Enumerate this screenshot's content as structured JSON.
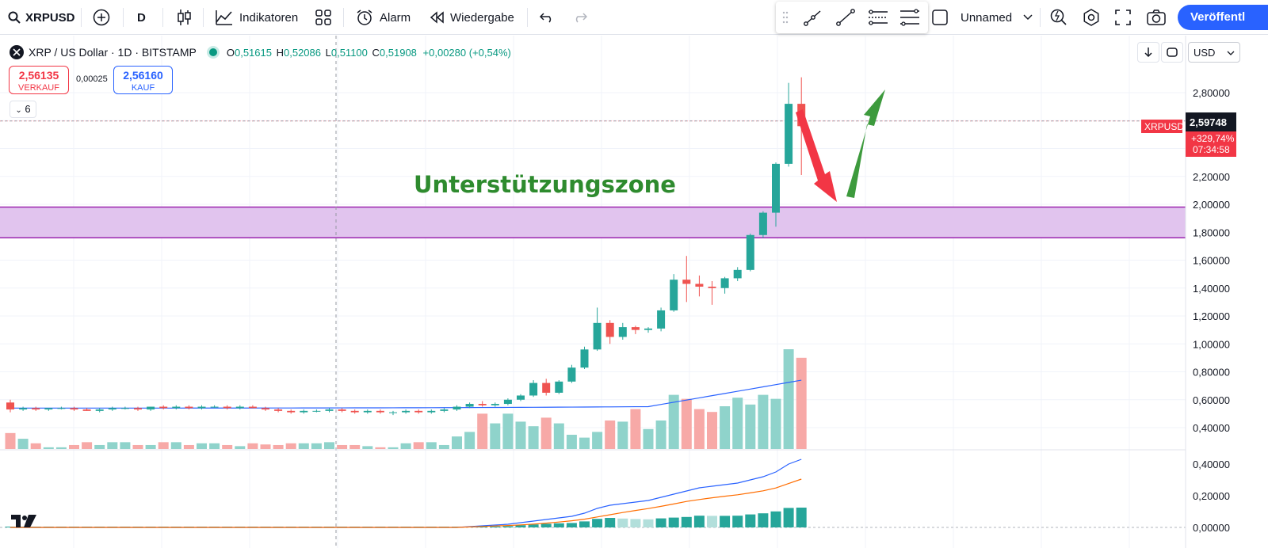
{
  "toolbar": {
    "symbol": "XRPUSD",
    "interval": "D",
    "indicators_label": "Indikatoren",
    "alarm_label": "Alarm",
    "replay_label": "Wiedergabe",
    "layout_name": "Unnamed",
    "publish_label": "Veröffentl"
  },
  "legend": {
    "title": "XRP / US Dollar · 1D · BITSTAMP",
    "o_label": "O",
    "o_value": "0,51615",
    "h_label": "H",
    "h_value": "0,52086",
    "l_label": "L",
    "l_value": "0,51100",
    "c_label": "C",
    "c_value": "0,51908",
    "change": "+0,00280 (+0,54%)",
    "sell_price": "2,56135",
    "sell_label": "VERKAUF",
    "spread": "0,00025",
    "buy_price": "2,56160",
    "buy_label": "KAUF",
    "indicator_count": "6"
  },
  "axis": {
    "currency": "USD",
    "current_symbol": "XRPUSD",
    "current_price": "2,59748",
    "current_change": "+329,74%",
    "countdown": "07:34:58"
  },
  "annotation": {
    "text": "Unterstützungszone",
    "zone_top": 1.98,
    "zone_bottom": 1.76,
    "zone_color": "#e1c4ee",
    "zone_line_color": "#9c27b0"
  },
  "colors": {
    "up": "#26a69a",
    "down": "#ef5350",
    "text_color": "#2e8b2e"
  },
  "chart_data": {
    "type": "candlestick",
    "y_ticks": [
      "2,80000",
      "2,60000",
      "2,40000",
      "2,20000",
      "2,00000",
      "1,80000",
      "1,60000",
      "1,40000",
      "1,20000",
      "1,00000",
      "0,80000",
      "0,60000",
      "0,40000"
    ],
    "y_tick_values": [
      2.8,
      2.6,
      2.4,
      2.2,
      2.0,
      1.8,
      1.6,
      1.4,
      1.2,
      1.0,
      0.8,
      0.6,
      0.4
    ],
    "ylim": [
      0.35,
      2.92
    ],
    "candles": [
      [
        0.58,
        0.6,
        0.51,
        0.53
      ],
      [
        0.53,
        0.55,
        0.52,
        0.54
      ],
      [
        0.54,
        0.55,
        0.52,
        0.53
      ],
      [
        0.53,
        0.54,
        0.52,
        0.54
      ],
      [
        0.54,
        0.55,
        0.53,
        0.54
      ],
      [
        0.54,
        0.55,
        0.52,
        0.53
      ],
      [
        0.53,
        0.54,
        0.52,
        0.52
      ],
      [
        0.52,
        0.54,
        0.51,
        0.53
      ],
      [
        0.53,
        0.55,
        0.52,
        0.54
      ],
      [
        0.54,
        0.55,
        0.53,
        0.54
      ],
      [
        0.54,
        0.55,
        0.52,
        0.53
      ],
      [
        0.53,
        0.55,
        0.52,
        0.55
      ],
      [
        0.55,
        0.56,
        0.53,
        0.54
      ],
      [
        0.54,
        0.56,
        0.53,
        0.55
      ],
      [
        0.55,
        0.56,
        0.53,
        0.54
      ],
      [
        0.54,
        0.56,
        0.53,
        0.55
      ],
      [
        0.55,
        0.56,
        0.54,
        0.55
      ],
      [
        0.55,
        0.56,
        0.53,
        0.54
      ],
      [
        0.54,
        0.56,
        0.53,
        0.55
      ],
      [
        0.55,
        0.56,
        0.54,
        0.54
      ],
      [
        0.54,
        0.55,
        0.52,
        0.53
      ],
      [
        0.53,
        0.54,
        0.51,
        0.52
      ],
      [
        0.52,
        0.53,
        0.5,
        0.51
      ],
      [
        0.51,
        0.53,
        0.5,
        0.52
      ],
      [
        0.52,
        0.53,
        0.51,
        0.52
      ],
      [
        0.52,
        0.54,
        0.51,
        0.53
      ],
      [
        0.53,
        0.54,
        0.51,
        0.52
      ],
      [
        0.52,
        0.53,
        0.5,
        0.51
      ],
      [
        0.51,
        0.53,
        0.5,
        0.52
      ],
      [
        0.52,
        0.53,
        0.5,
        0.51
      ],
      [
        0.51,
        0.52,
        0.49,
        0.51
      ],
      [
        0.51,
        0.53,
        0.5,
        0.52
      ],
      [
        0.52,
        0.53,
        0.5,
        0.51
      ],
      [
        0.51,
        0.53,
        0.5,
        0.52
      ],
      [
        0.52,
        0.54,
        0.51,
        0.53
      ],
      [
        0.53,
        0.56,
        0.52,
        0.55
      ],
      [
        0.55,
        0.58,
        0.54,
        0.57
      ],
      [
        0.57,
        0.59,
        0.55,
        0.56
      ],
      [
        0.56,
        0.58,
        0.55,
        0.57
      ],
      [
        0.57,
        0.61,
        0.56,
        0.6
      ],
      [
        0.6,
        0.64,
        0.59,
        0.63
      ],
      [
        0.63,
        0.74,
        0.62,
        0.72
      ],
      [
        0.72,
        0.75,
        0.63,
        0.65
      ],
      [
        0.65,
        0.74,
        0.64,
        0.73
      ],
      [
        0.73,
        0.85,
        0.72,
        0.83
      ],
      [
        0.83,
        0.98,
        0.82,
        0.96
      ],
      [
        0.96,
        1.26,
        0.95,
        1.15
      ],
      [
        1.15,
        1.17,
        1.0,
        1.05
      ],
      [
        1.05,
        1.15,
        1.03,
        1.12
      ],
      [
        1.12,
        1.13,
        1.07,
        1.1
      ],
      [
        1.1,
        1.12,
        1.08,
        1.11
      ],
      [
        1.11,
        1.26,
        1.09,
        1.24
      ],
      [
        1.24,
        1.5,
        1.23,
        1.46
      ],
      [
        1.46,
        1.63,
        1.3,
        1.43
      ],
      [
        1.43,
        1.49,
        1.34,
        1.41
      ],
      [
        1.41,
        1.45,
        1.28,
        1.4
      ],
      [
        1.4,
        1.48,
        1.36,
        1.47
      ],
      [
        1.47,
        1.55,
        1.45,
        1.53
      ],
      [
        1.53,
        1.79,
        1.52,
        1.78
      ],
      [
        1.78,
        1.95,
        1.76,
        1.94
      ],
      [
        1.94,
        2.3,
        1.84,
        2.29
      ],
      [
        2.29,
        2.87,
        2.27,
        2.72
      ],
      [
        2.72,
        2.91,
        2.21,
        2.56
      ]
    ],
    "volume": [
      0.28,
      0.18,
      0.1,
      0.03,
      0.03,
      0.07,
      0.12,
      0.07,
      0.12,
      0.12,
      0.07,
      0.07,
      0.12,
      0.12,
      0.07,
      0.1,
      0.1,
      0.07,
      0.05,
      0.1,
      0.08,
      0.07,
      0.1,
      0.1,
      0.1,
      0.12,
      0.07,
      0.07,
      0.05,
      0.03,
      0.03,
      0.1,
      0.12,
      0.12,
      0.07,
      0.22,
      0.3,
      0.62,
      0.45,
      0.62,
      0.48,
      0.4,
      0.55,
      0.45,
      0.25,
      0.2,
      0.3,
      0.5,
      0.48,
      0.7,
      0.35,
      0.5,
      0.95,
      0.88,
      0.7,
      0.65,
      0.75,
      0.9,
      0.78,
      0.95,
      0.88,
      1.75,
      1.6
    ],
    "volume_ma": [
      0.54,
      0.56
    ],
    "macd": [
      0.0,
      0.0,
      0.0,
      0.0,
      0.0,
      0.0,
      0.0,
      0.0,
      0.0,
      0.0,
      0.0,
      0.0,
      0.0,
      0.0,
      0.0,
      0.0,
      0.0,
      0.0,
      0.0,
      0.0,
      0.0,
      0.0,
      0.0,
      0.0,
      0.0,
      0.0,
      0.0,
      0.0,
      0.0,
      0.0,
      0.0,
      0.0,
      0.0,
      0.0,
      0.0,
      0.0,
      0.005,
      0.01,
      0.015,
      0.02,
      0.03,
      0.04,
      0.05,
      0.06,
      0.07,
      0.09,
      0.12,
      0.14,
      0.15,
      0.16,
      0.17,
      0.19,
      0.21,
      0.23,
      0.25,
      0.26,
      0.27,
      0.28,
      0.3,
      0.32,
      0.35,
      0.4,
      0.43
    ],
    "signal": [
      0.0,
      0.0,
      0.0,
      0.0,
      0.0,
      0.0,
      0.0,
      0.0,
      0.0,
      0.0,
      0.0,
      0.0,
      0.0,
      0.0,
      0.0,
      0.0,
      0.0,
      0.0,
      0.0,
      0.0,
      0.0,
      0.0,
      0.0,
      0.0,
      0.0,
      0.0,
      0.0,
      0.0,
      0.0,
      0.0,
      0.0,
      0.0,
      0.0,
      0.0,
      0.0,
      0.0,
      0.003,
      0.006,
      0.009,
      0.012,
      0.016,
      0.021,
      0.027,
      0.034,
      0.042,
      0.052,
      0.066,
      0.08,
      0.094,
      0.107,
      0.119,
      0.133,
      0.148,
      0.164,
      0.176,
      0.187,
      0.197,
      0.206,
      0.218,
      0.231,
      0.249,
      0.277,
      0.305
    ],
    "macd_ticks": [
      "0,40000",
      "0,20000",
      "0,00000"
    ],
    "macd_tick_values": [
      0.4,
      0.2,
      0.0
    ]
  }
}
